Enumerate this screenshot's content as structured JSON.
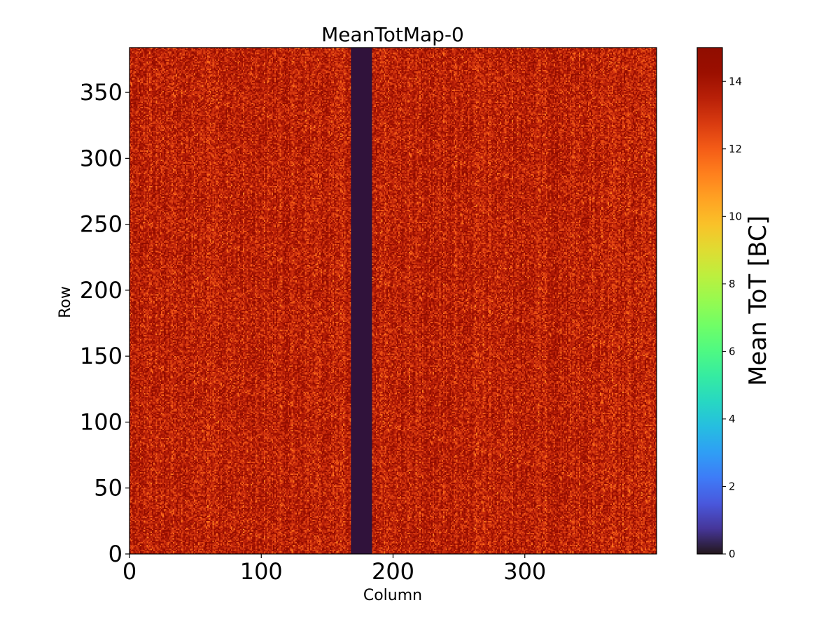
{
  "chart_data": {
    "type": "heatmap",
    "title": "MeanTotMap-0",
    "xlabel": "Column",
    "ylabel": "Row",
    "xlim": [
      0,
      400
    ],
    "ylim": [
      0,
      384
    ],
    "x_ticks": [
      0,
      100,
      200,
      300
    ],
    "x_tick_labels": [
      "0",
      "100",
      "200",
      "300"
    ],
    "y_ticks": [
      0,
      50,
      100,
      150,
      200,
      250,
      300,
      350
    ],
    "y_tick_labels": [
      "0",
      "50",
      "100",
      "150",
      "200",
      "250",
      "300",
      "350"
    ],
    "colormap": "turbo",
    "colorbar": {
      "label": "Mean ToT [BC]",
      "range": [
        0,
        15
      ],
      "ticks": [
        0,
        2,
        4,
        6,
        8,
        10,
        12,
        14
      ],
      "tick_labels": [
        "0",
        "2",
        "4",
        "6",
        "8",
        "10",
        "12",
        "14"
      ]
    },
    "typical_value": 13.5,
    "value_spread": [
      11,
      15
    ],
    "dead_columns": {
      "from": 168,
      "to": 184,
      "value": 0
    }
  }
}
